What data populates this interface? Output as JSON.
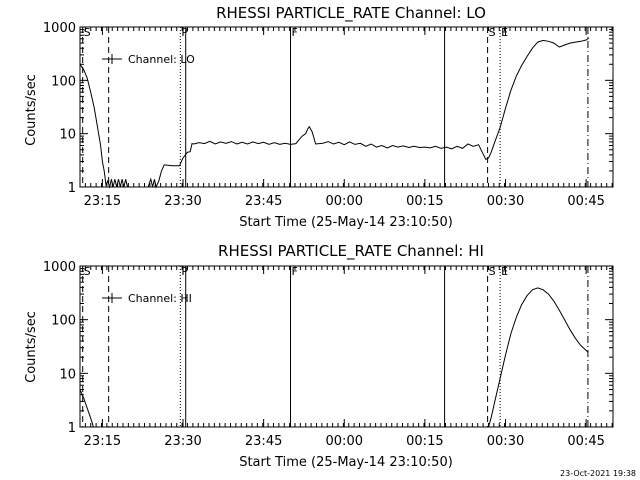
{
  "chart_data": [
    {
      "type": "line",
      "title": "RHESSI PARTICLE_RATE Channel: LO",
      "xlabel": "Start Time (25-May-14 23:10:50)",
      "ylabel": "Counts/sec",
      "yscale": "log",
      "ylim": [
        1,
        1000
      ],
      "xlim": [
        "23:10:50",
        "00:50:00"
      ],
      "yticks": [
        "1",
        "10",
        "100",
        "1000"
      ],
      "xticks": [
        "23:15",
        "23:30",
        "23:45",
        "00:00",
        "00:15",
        "00:30",
        "00:45"
      ],
      "legend": "Channel: LO",
      "legend_position": "top-left",
      "markers": [
        {
          "label": "S",
          "t": "23:11:20",
          "style": "dashed"
        },
        {
          "label": "",
          "t": "23:16:10",
          "style": "dashed"
        },
        {
          "label": "P",
          "t": "23:29:30",
          "style": "dotted"
        },
        {
          "label": "",
          "t": "23:30:30",
          "style": "solid"
        },
        {
          "label": "F",
          "t": "23:50:00",
          "style": "solid"
        },
        {
          "label": "",
          "t": "00:18:40",
          "style": "solid"
        },
        {
          "label": "S",
          "t": "00:26:40",
          "style": "dashed"
        },
        {
          "label": "E",
          "t": "00:29:00",
          "style": "dotted"
        },
        {
          "label": "",
          "t": "00:45:20",
          "style": "dashdot"
        }
      ],
      "series": [
        {
          "values": [
            [
              "23:10:50",
              200
            ],
            [
              "23:11:30",
              160
            ],
            [
              "23:12:10",
              110
            ],
            [
              "23:12:50",
              60
            ],
            [
              "23:13:30",
              30
            ],
            [
              "23:14:10",
              12
            ],
            [
              "23:14:40",
              6
            ],
            [
              "23:15:00",
              3
            ],
            [
              "23:15:20",
              2
            ],
            [
              "23:15:40",
              1.1
            ],
            [
              "23:16:00",
              1.3
            ],
            [
              "23:16:20",
              1
            ],
            [
              "23:16:40",
              1.4
            ],
            [
              "23:17:00",
              1
            ],
            [
              "23:17:20",
              1.4
            ],
            [
              "23:17:40",
              1
            ],
            [
              "23:18:00",
              1.4
            ],
            [
              "23:18:20",
              1
            ],
            [
              "23:18:40",
              1.4
            ],
            [
              "23:19:00",
              1
            ],
            [
              "23:19:20",
              1.4
            ],
            [
              "23:19:40",
              1
            ],
            [
              "23:21:00",
              1
            ],
            [
              "23:22:00",
              1
            ],
            [
              "23:23:30",
              1
            ],
            [
              "23:24:00",
              1.4
            ],
            [
              "23:24:20",
              1
            ],
            [
              "23:24:40",
              1.4
            ],
            [
              "23:25:00",
              1
            ],
            [
              "23:25:30",
              1.3
            ],
            [
              "23:26:00",
              2
            ],
            [
              "23:26:30",
              2.6
            ],
            [
              "23:28:00",
              2.5
            ],
            [
              "23:29:20",
              2.5
            ],
            [
              "23:30:00",
              3.5
            ],
            [
              "23:30:50",
              4.5
            ],
            [
              "23:31:20",
              4.6
            ],
            [
              "23:31:40",
              6.5
            ],
            [
              "23:32:00",
              6.4
            ],
            [
              "23:33:00",
              6.8
            ],
            [
              "23:34:00",
              6.5
            ],
            [
              "23:35:00",
              7.2
            ],
            [
              "23:36:00",
              6.4
            ],
            [
              "23:37:00",
              7
            ],
            [
              "23:38:00",
              6.6
            ],
            [
              "23:39:00",
              7.1
            ],
            [
              "23:40:00",
              6.4
            ],
            [
              "23:41:00",
              6.9
            ],
            [
              "23:42:00",
              6.4
            ],
            [
              "23:43:00",
              7
            ],
            [
              "23:44:00",
              6.5
            ],
            [
              "23:45:00",
              6.9
            ],
            [
              "23:46:00",
              6.3
            ],
            [
              "23:47:00",
              6.8
            ],
            [
              "23:48:00",
              6.3
            ],
            [
              "23:49:00",
              6.6
            ],
            [
              "23:50:00",
              6.3
            ],
            [
              "23:51:00",
              6.5
            ],
            [
              "23:51:30",
              7.5
            ],
            [
              "23:52:10",
              9
            ],
            [
              "23:52:50",
              10
            ],
            [
              "23:53:10",
              12
            ],
            [
              "23:53:30",
              13.5
            ],
            [
              "23:54:00",
              11
            ],
            [
              "23:54:20",
              8.5
            ],
            [
              "23:54:40",
              6.4
            ],
            [
              "23:56:00",
              6.6
            ],
            [
              "23:57:00",
              7.1
            ],
            [
              "23:58:00",
              6.4
            ],
            [
              "23:59:00",
              6.9
            ],
            [
              "00:00:00",
              6.2
            ],
            [
              "00:01:00",
              7
            ],
            [
              "00:02:00",
              6.3
            ],
            [
              "00:03:00",
              6.6
            ],
            [
              "00:04:00",
              5.8
            ],
            [
              "00:05:00",
              6.4
            ],
            [
              "00:06:00",
              5.6
            ],
            [
              "00:07:00",
              6
            ],
            [
              "00:08:00",
              5.4
            ],
            [
              "00:09:00",
              6
            ],
            [
              "00:10:00",
              5.6
            ],
            [
              "00:11:00",
              5.9
            ],
            [
              "00:12:00",
              5.5
            ],
            [
              "00:13:00",
              5.8
            ],
            [
              "00:14:00",
              5.5
            ],
            [
              "00:15:00",
              5.6
            ],
            [
              "00:16:00",
              5.4
            ],
            [
              "00:17:00",
              5.8
            ],
            [
              "00:18:00",
              5.3
            ],
            [
              "00:19:00",
              5.6
            ],
            [
              "00:20:00",
              5.2
            ],
            [
              "00:21:00",
              5.8
            ],
            [
              "00:22:00",
              5.3
            ],
            [
              "00:23:00",
              6.4
            ],
            [
              "00:24:00",
              5.8
            ],
            [
              "00:25:00",
              6.2
            ],
            [
              "00:25:40",
              4.5
            ],
            [
              "00:26:20",
              3.3
            ],
            [
              "00:26:50",
              3.5
            ],
            [
              "00:27:20",
              4.5
            ],
            [
              "00:28:00",
              7
            ],
            [
              "00:29:00",
              13
            ],
            [
              "00:30:00",
              30
            ],
            [
              "00:31:00",
              65
            ],
            [
              "00:32:00",
              120
            ],
            [
              "00:33:00",
              190
            ],
            [
              "00:34:00",
              280
            ],
            [
              "00:35:00",
              400
            ],
            [
              "00:36:00",
              520
            ],
            [
              "00:37:00",
              560
            ],
            [
              "00:38:00",
              540
            ],
            [
              "00:39:00",
              500
            ],
            [
              "00:40:00",
              420
            ],
            [
              "00:41:00",
              460
            ],
            [
              "00:42:00",
              500
            ],
            [
              "00:43:00",
              520
            ],
            [
              "00:44:00",
              540
            ],
            [
              "00:45:00",
              570
            ],
            [
              "00:45:30",
              620
            ]
          ]
        }
      ]
    },
    {
      "type": "line",
      "title": "RHESSI PARTICLE_RATE Channel: HI",
      "xlabel": "Start Time (25-May-14 23:10:50)",
      "ylabel": "Counts/sec",
      "yscale": "log",
      "ylim": [
        1,
        1000
      ],
      "xlim": [
        "23:10:50",
        "00:50:00"
      ],
      "yticks": [
        "1",
        "10",
        "100",
        "1000"
      ],
      "xticks": [
        "23:15",
        "23:30",
        "23:45",
        "00:00",
        "00:15",
        "00:30",
        "00:45"
      ],
      "legend": "Channel: HI",
      "legend_position": "top-left",
      "markers": [
        {
          "label": "S",
          "t": "23:11:20",
          "style": "dashed"
        },
        {
          "label": "",
          "t": "23:16:10",
          "style": "dashed"
        },
        {
          "label": "P",
          "t": "23:29:30",
          "style": "dotted"
        },
        {
          "label": "",
          "t": "23:30:30",
          "style": "solid"
        },
        {
          "label": "F",
          "t": "23:50:00",
          "style": "solid"
        },
        {
          "label": "",
          "t": "00:18:40",
          "style": "solid"
        },
        {
          "label": "S",
          "t": "00:26:40",
          "style": "dashed"
        },
        {
          "label": "E",
          "t": "00:29:00",
          "style": "dotted"
        },
        {
          "label": "",
          "t": "00:45:20",
          "style": "dashdot"
        }
      ],
      "series": [
        {
          "values": [
            [
              "23:10:50",
              5
            ],
            [
              "23:11:30",
              3.5
            ],
            [
              "23:12:00",
              2.5
            ],
            [
              "23:12:30",
              1.8
            ],
            [
              "23:13:00",
              1.3
            ],
            [
              "23:13:20",
              1
            ],
            [
              "00:26:50",
              1
            ],
            [
              "00:27:20",
              1.5
            ],
            [
              "00:28:00",
              3
            ],
            [
              "00:29:00",
              8
            ],
            [
              "00:30:00",
              22
            ],
            [
              "00:31:00",
              55
            ],
            [
              "00:32:00",
              110
            ],
            [
              "00:33:00",
              190
            ],
            [
              "00:34:00",
              280
            ],
            [
              "00:35:00",
              360
            ],
            [
              "00:36:00",
              390
            ],
            [
              "00:37:00",
              360
            ],
            [
              "00:38:00",
              300
            ],
            [
              "00:39:00",
              220
            ],
            [
              "00:40:00",
              150
            ],
            [
              "00:41:00",
              100
            ],
            [
              "00:42:00",
              65
            ],
            [
              "00:43:00",
              45
            ],
            [
              "00:44:00",
              33
            ],
            [
              "00:45:20",
              25
            ]
          ]
        }
      ]
    }
  ],
  "footer": {
    "timestamp": "23-Oct-2021 19:38"
  }
}
